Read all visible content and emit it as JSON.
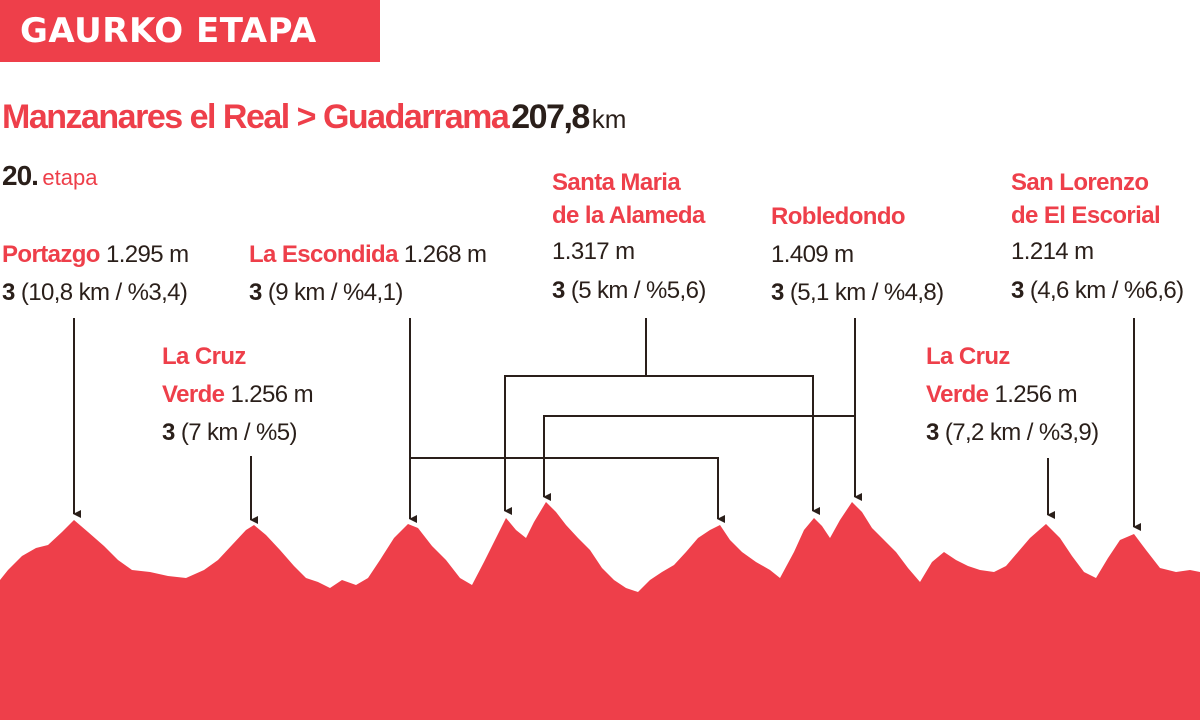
{
  "header": {
    "badge": "GAURKO ETAPA"
  },
  "stage": {
    "route": "Manzanares el Real > Guadarrama",
    "distance": "207,8",
    "distance_unit": "km",
    "number": "20.",
    "number_label": "etapa"
  },
  "climbs": [
    {
      "name": "Portazgo",
      "altitude": "1.295 m",
      "category": "3",
      "detail": "(10,8 km / %3,4)"
    },
    {
      "name": "La Cruz",
      "name2": "Verde",
      "altitude": "1.256 m",
      "category": "3",
      "detail": "(7 km / %5)"
    },
    {
      "name": "La Escondida",
      "altitude": "1.268 m",
      "category": "3",
      "detail": "(9 km / %4,1)"
    },
    {
      "name": "Santa Maria",
      "name2": "de la Alameda",
      "altitude": "1.317 m",
      "category": "3",
      "detail": "(5 km / %5,6)"
    },
    {
      "name": "Robledondo",
      "altitude": "1.409 m",
      "category": "3",
      "detail": "(5,1 km / %4,8)"
    },
    {
      "name": "La Cruz",
      "name2": "Verde",
      "altitude": "1.256 m",
      "category": "3",
      "detail": "(7,2 km / %3,9)"
    },
    {
      "name": "San Lorenzo",
      "name2": "de El Escorial",
      "altitude": "1.214 m",
      "category": "3",
      "detail": "(4,6 km / %6,6)"
    }
  ],
  "colors": {
    "accent": "#ee3f4a",
    "text": "#2a1f1a",
    "background": "#ffffff"
  }
}
